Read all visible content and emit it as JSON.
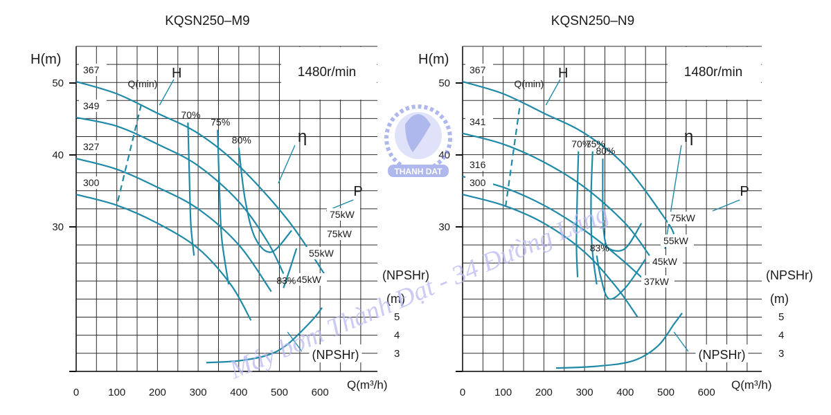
{
  "colors": {
    "curve": "#1f8aa8",
    "grid": "#2a2a2a",
    "watermark": "#b9b9f2",
    "logo": "#6f7fe0"
  },
  "watermark": {
    "text": "Máy bơm Thành Đạt - 34 Đường Láng",
    "logo_text": "THANH DAT"
  },
  "chart_data": [
    {
      "type": "line",
      "title": "KQSN250–M9",
      "speed": "1480r/min",
      "ylabel": "H(m)",
      "xlabel": "Q(m³/h)",
      "npsh_label": "(NPSHr)",
      "npsh_unit": "(m)",
      "xlim": [
        0,
        650
      ],
      "ylim": [
        20,
        55
      ],
      "xticks": [
        "0",
        "100",
        "200",
        "300",
        "400",
        "500",
        "600"
      ],
      "yticks": [
        "30",
        "40",
        "50"
      ],
      "npsh_ticks": [
        "3",
        "4",
        "5"
      ],
      "grid": true,
      "head_curves": [
        {
          "name": "367",
          "points": [
            [
              0,
              50.2
            ],
            [
              100,
              48.5
            ],
            [
              200,
              45.8
            ],
            [
              300,
              43
            ],
            [
              400,
              38.5
            ],
            [
              520,
              31
            ],
            [
              610,
              23.5
            ]
          ]
        },
        {
          "name": "349",
          "points": [
            [
              0,
              45.2
            ],
            [
              100,
              44
            ],
            [
              200,
              41.5
            ],
            [
              300,
              38.5
            ],
            [
              400,
              33.5
            ],
            [
              470,
              28
            ],
            [
              510,
              23.5
            ]
          ]
        },
        {
          "name": "327",
          "points": [
            [
              0,
              39.5
            ],
            [
              100,
              38
            ],
            [
              200,
              35.5
            ],
            [
              300,
              32.5
            ],
            [
              400,
              27.5
            ],
            [
              480,
              21
            ]
          ]
        },
        {
          "name": "300",
          "points": [
            [
              0,
              34.5
            ],
            [
              100,
              33
            ],
            [
              200,
              30.5
            ],
            [
              300,
              27
            ],
            [
              380,
              22
            ],
            [
              430,
              17
            ]
          ]
        }
      ],
      "efficiency_curves": [
        {
          "name": "70%",
          "points": [
            [
              275,
              44.5
            ],
            [
              278,
              38
            ],
            [
              282,
              30.5
            ],
            [
              290,
              26
            ]
          ]
        },
        {
          "name": "75%",
          "points": [
            [
              348,
              43.5
            ],
            [
              352,
              36
            ],
            [
              358,
              28.5
            ],
            [
              375,
              22
            ]
          ]
        },
        {
          "name": "80%",
          "points": [
            [
              400,
              41
            ],
            [
              415,
              34
            ],
            [
              440,
              28.5
            ],
            [
              480,
              26.5
            ],
            [
              530,
              29.5
            ]
          ]
        },
        {
          "name": "83%",
          "points": [
            [
              510,
              21.5
            ],
            [
              525,
              24
            ],
            [
              542,
              27
            ]
          ]
        }
      ],
      "npsh_curve": [
        [
          320,
          2.5
        ],
        [
          400,
          2.6
        ],
        [
          470,
          2.9
        ],
        [
          520,
          3.5
        ],
        [
          580,
          4.8
        ],
        [
          605,
          5.5
        ]
      ],
      "power_labels": [
        "75kW",
        "75kW",
        "55kW",
        "45kW"
      ],
      "labels": {
        "qmin": "Q(min)",
        "head": "H",
        "eff": "η",
        "power": "P",
        "npsh": "(NPSHr)"
      }
    },
    {
      "type": "line",
      "title": "KQSN250–N9",
      "speed": "1480r/min",
      "ylabel": "H(m)",
      "xlabel": "Q(m³/h)",
      "npsh_label": "(NPSHr)",
      "npsh_unit": "(m)",
      "xlim": [
        0,
        650
      ],
      "ylim": [
        20,
        55
      ],
      "xticks": [
        "0",
        "100",
        "200",
        "300",
        "400",
        "500",
        "600"
      ],
      "yticks": [
        "30",
        "40",
        "50"
      ],
      "npsh_ticks": [
        "3",
        "4",
        "5"
      ],
      "grid": true,
      "head_curves": [
        {
          "name": "367",
          "points": [
            [
              0,
              50.2
            ],
            [
              100,
              48.5
            ],
            [
              200,
              45.8
            ],
            [
              300,
              43
            ],
            [
              400,
              38.5
            ],
            [
              500,
              31
            ],
            [
              520,
              29
            ]
          ]
        },
        {
          "name": "341",
          "points": [
            [
              0,
              43
            ],
            [
              100,
              41.5
            ],
            [
              200,
              39
            ],
            [
              300,
              35.5
            ],
            [
              400,
              30.5
            ],
            [
              460,
              26
            ]
          ]
        },
        {
          "name": "316",
          "points": [
            [
              0,
              37
            ],
            [
              100,
              35.5
            ],
            [
              200,
              33
            ],
            [
              300,
              29.5
            ],
            [
              380,
              26
            ],
            [
              440,
              23
            ]
          ]
        },
        {
          "name": "300",
          "points": [
            [
              0,
              34.5
            ],
            [
              100,
              33
            ],
            [
              200,
              30.5
            ],
            [
              300,
              26.5
            ],
            [
              380,
              21.5
            ],
            [
              430,
              17.5
            ]
          ]
        }
      ],
      "efficiency_curves": [
        {
          "name": "70%",
          "points": [
            [
              285,
              40.5
            ],
            [
              282,
              34
            ],
            [
              280,
              27.5
            ],
            [
              283,
              23
            ]
          ]
        },
        {
          "name": "75%",
          "points": [
            [
              320,
              40.5
            ],
            [
              316,
              34
            ],
            [
              318,
              27.5
            ],
            [
              330,
              22
            ]
          ]
        },
        {
          "name": "80%",
          "points": [
            [
              345,
              39.5
            ],
            [
              345,
              33
            ],
            [
              348,
              29
            ],
            [
              360,
              27
            ],
            [
              400,
              27
            ],
            [
              440,
              30.5
            ]
          ]
        },
        {
          "name": "83%",
          "points": [
            [
              330,
              26
            ],
            [
              340,
              23
            ],
            [
              360,
              20
            ],
            [
              400,
              21.5
            ],
            [
              450,
              25.5
            ]
          ]
        }
      ],
      "npsh_curve": [
        [
          230,
          2.2
        ],
        [
          330,
          2.3
        ],
        [
          420,
          2.6
        ],
        [
          480,
          3.4
        ],
        [
          520,
          4.6
        ],
        [
          540,
          5.2
        ]
      ],
      "power_labels": [
        "75kW",
        "55kW",
        "45kW",
        "37kW"
      ],
      "labels": {
        "qmin": "Q(min)",
        "head": "H",
        "eff": "η",
        "power": "P",
        "npsh": "(NPSHr)"
      }
    }
  ]
}
